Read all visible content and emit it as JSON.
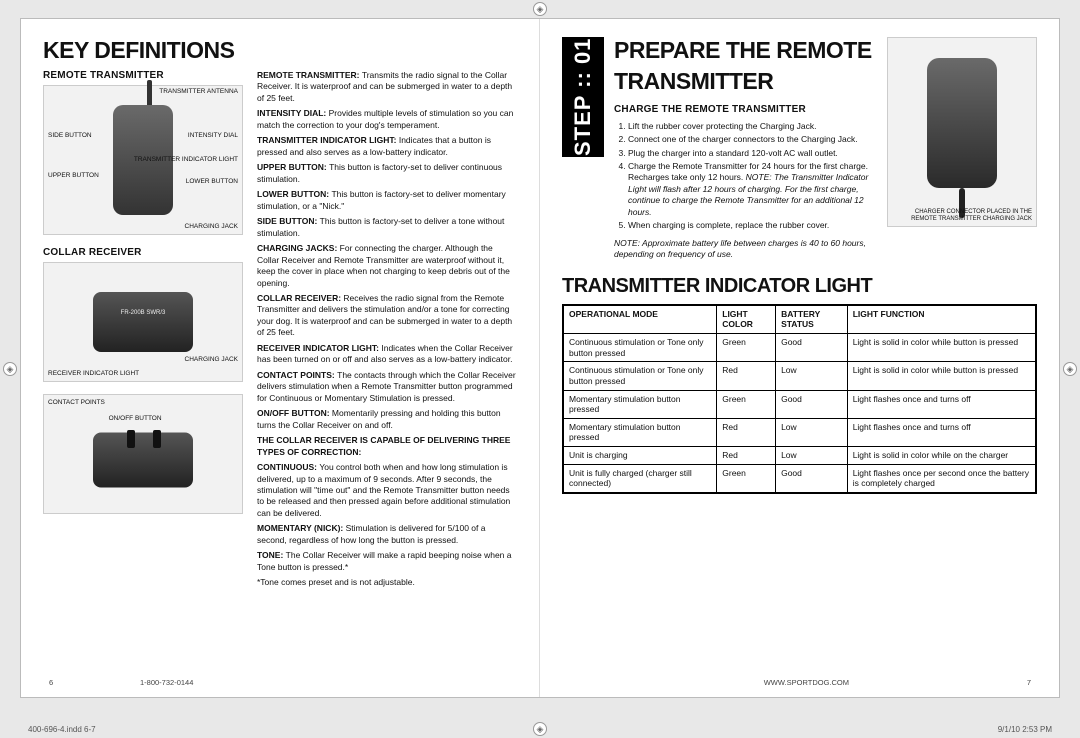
{
  "left": {
    "title": "Key Definitions",
    "remote_heading": "Remote Transmitter",
    "collar_heading": "Collar Receiver",
    "transmitter_labels": {
      "antenna": "Transmitter Antenna",
      "intensity": "Intensity Dial",
      "light": "Transmitter Indicator Light",
      "lower": "Lower Button",
      "side": "Side Button",
      "upper": "Upper Button",
      "jack": "Charging Jack"
    },
    "collar_labels": {
      "model": "FR-200B  SWR/3",
      "receiver_light": "Receiver Indicator Light",
      "charging_jack": "Charging Jack",
      "contact": "Contact Points",
      "onoff": "On/Off Button"
    },
    "defs": [
      {
        "term": "Remote Transmitter:",
        "body": "Transmits the radio signal to the Collar Receiver. It is waterproof and can be submerged in water to a depth of 25 feet."
      },
      {
        "term": "Intensity Dial:",
        "body": "Provides multiple levels of stimulation so you can match the correction to your dog's temperament."
      },
      {
        "term": "Transmitter Indicator Light:",
        "body": "Indicates that a button is pressed and also serves as a low-battery indicator."
      },
      {
        "term": "Upper Button:",
        "body": "This button is factory-set to deliver continuous stimulation."
      },
      {
        "term": "Lower Button:",
        "body": "This button is factory-set to deliver momentary stimulation, or a \"Nick.\""
      },
      {
        "term": "Side Button:",
        "body": "This button is factory-set to deliver a tone without stimulation."
      },
      {
        "term": "Charging Jacks:",
        "body": "For connecting the charger. Although the Collar Receiver and Remote Transmitter are waterproof without it, keep the cover in place when not charging to keep debris out of the opening."
      },
      {
        "term": "Collar Receiver:",
        "body": "Receives the radio signal from the Remote Transmitter and delivers the stimulation and/or a tone for correcting your dog. It is waterproof and can be submerged in water to a depth of 25 feet."
      },
      {
        "term": "Receiver Indicator Light:",
        "body": "Indicates when the Collar Receiver has been turned on or off and also serves as a low-battery indicator."
      },
      {
        "term": "Contact Points:",
        "body": "The contacts through which the Collar Receiver delivers stimulation when a Remote Transmitter button programmed for Continuous or Momentary Stimulation is pressed."
      },
      {
        "term": "On/Off Button:",
        "body": "Momentarily pressing and holding this button turns the Collar Receiver on and off."
      }
    ],
    "types_heading": "The Collar Receiver is capable of delivering three types of correction:",
    "types": [
      {
        "term": "Continuous:",
        "body": "You control both when and how long stimulation is delivered, up to a maximum of 9 seconds. After 9 seconds, the stimulation will \"time out\" and the Remote Transmitter button needs to be released and then pressed again before additional stimulation can be delivered."
      },
      {
        "term": "Momentary (Nick):",
        "body": "Stimulation is delivered for 5/100 of a second, regardless of how long the button is pressed."
      },
      {
        "term": "Tone:",
        "body": "The Collar Receiver will make a rapid beeping noise when a Tone button is pressed.*"
      }
    ],
    "tone_note": "*Tone comes preset and is not adjustable.",
    "page_num": "6",
    "phone": "1-800-732-0144"
  },
  "right": {
    "title": "Prepare the Remote Transmitter",
    "step_badge": "STEP :: 01",
    "charge_heading": "Charge the Remote Transmitter",
    "steps": [
      "Lift the rubber cover protecting the Charging Jack.",
      "Connect one of the charger connectors to the Charging Jack.",
      "Plug the charger into a standard 120-volt AC wall outlet.",
      "Charge the Remote Transmitter for 24 hours for the first charge. Recharges take only 12 hours. NOTE: The Transmitter Indicator Light will flash after 12 hours of charging. For the first charge, continue to charge the Remote Transmitter for an additional 12 hours.",
      "When charging is complete, replace the rubber cover."
    ],
    "battery_note": "NOTE: Approximate battery life between charges is 40 to 60 hours, depending on frequency of use.",
    "img_caption": "Charger connector placed in the Remote Transmitter Charging Jack",
    "table_title": "Transmitter Indicator Light",
    "table_headers": [
      "Operational Mode",
      "Light Color",
      "Battery Status",
      "Light Function"
    ],
    "table_rows": [
      [
        "Continuous stimulation or Tone only button pressed",
        "Green",
        "Good",
        "Light is solid in color while button is pressed"
      ],
      [
        "Continuous stimulation or Tone only button pressed",
        "Red",
        "Low",
        "Light is solid in color while button is pressed"
      ],
      [
        "Momentary stimulation button pressed",
        "Green",
        "Good",
        "Light flashes once and turns off"
      ],
      [
        "Momentary stimulation button pressed",
        "Red",
        "Low",
        "Light flashes once and turns off"
      ],
      [
        "Unit is charging",
        "Red",
        "Low",
        "Light is solid in color while on the charger"
      ],
      [
        "Unit is fully charged (charger still connected)",
        "Green",
        "Good",
        "Light flashes once per second once the battery is completely charged"
      ]
    ],
    "url": "WWW.SPORTDOG.COM",
    "page_num": "7"
  },
  "outer": {
    "file": "400-696-4.indd   6-7",
    "timestamp": "9/1/10   2:53 PM"
  },
  "colors": {
    "page_bg": "#ffffff",
    "outer_bg": "#e8e8e8",
    "text": "#111111",
    "border": "#000000"
  }
}
